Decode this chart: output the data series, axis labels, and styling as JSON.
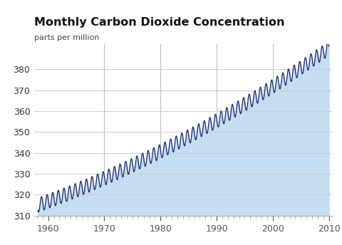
{
  "title": "Monthly Carbon Dioxide Concentration",
  "ylabel": "parts per million",
  "xlim": [
    1957.5,
    2010.5
  ],
  "ylim": [
    310,
    392
  ],
  "yticks": [
    310,
    320,
    330,
    340,
    350,
    360,
    370,
    380
  ],
  "xticks": [
    1960,
    1970,
    1980,
    1990,
    2000,
    2010
  ],
  "vgrid_ticks": [
    1970,
    1980,
    1990,
    2000
  ],
  "line_color": "#1a2a6e",
  "fill_color": "#c5ddf0",
  "bg_color": "#ffffff",
  "title_fontsize": 11.5,
  "label_fontsize": 8.0,
  "tick_fontsize": 9,
  "line_width": 0.9
}
